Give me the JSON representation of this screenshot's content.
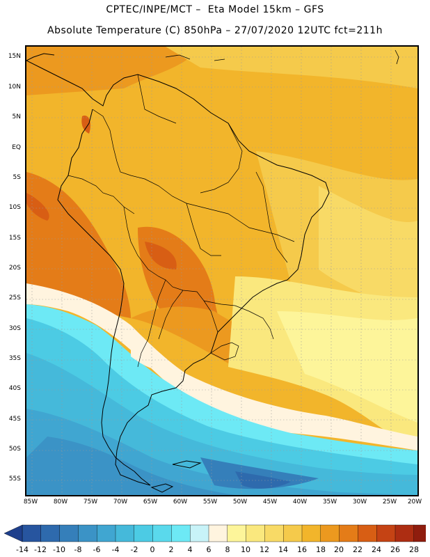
{
  "header": {
    "line1": "CPTEC/INPE/MCT –  Eta Model 15km – GFS",
    "line2": "Absolute Temperature (C) 850hPa – 27/07/2020 12UTC fct=211h"
  },
  "map": {
    "lat_labels": [
      "15N",
      "10N",
      "5N",
      "EQ",
      "5S",
      "10S",
      "15S",
      "20S",
      "25S",
      "30S",
      "35S",
      "40S",
      "45S",
      "50S",
      "55S"
    ],
    "lon_labels": [
      "85W",
      "80W",
      "75W",
      "70W",
      "65W",
      "60W",
      "55W",
      "50W",
      "45W",
      "40W",
      "35W",
      "30W",
      "25W",
      "20W"
    ]
  },
  "colorbar": {
    "labels": [
      "-14",
      "-12",
      "-10",
      "-8",
      "-6",
      "-4",
      "-2",
      "0",
      "2",
      "4",
      "6",
      "8",
      "10",
      "12",
      "14",
      "16",
      "18",
      "20",
      "22",
      "24",
      "26",
      "28"
    ],
    "colors": [
      "#1e3f8c",
      "#27559f",
      "#2e6aad",
      "#357fba",
      "#3b93c6",
      "#40a6d1",
      "#45b9da",
      "#4ccbe4",
      "#5ad9ec",
      "#6de9f5",
      "#c8f3f8",
      "#fff4df",
      "#fdf59a",
      "#fae87e",
      "#f8da66",
      "#f5ca4b",
      "#f2b52b",
      "#ec991f",
      "#e47c18",
      "#d85e14",
      "#c54314",
      "#ad2d12",
      "#8f1d0e",
      "#6f130c"
    ]
  }
}
